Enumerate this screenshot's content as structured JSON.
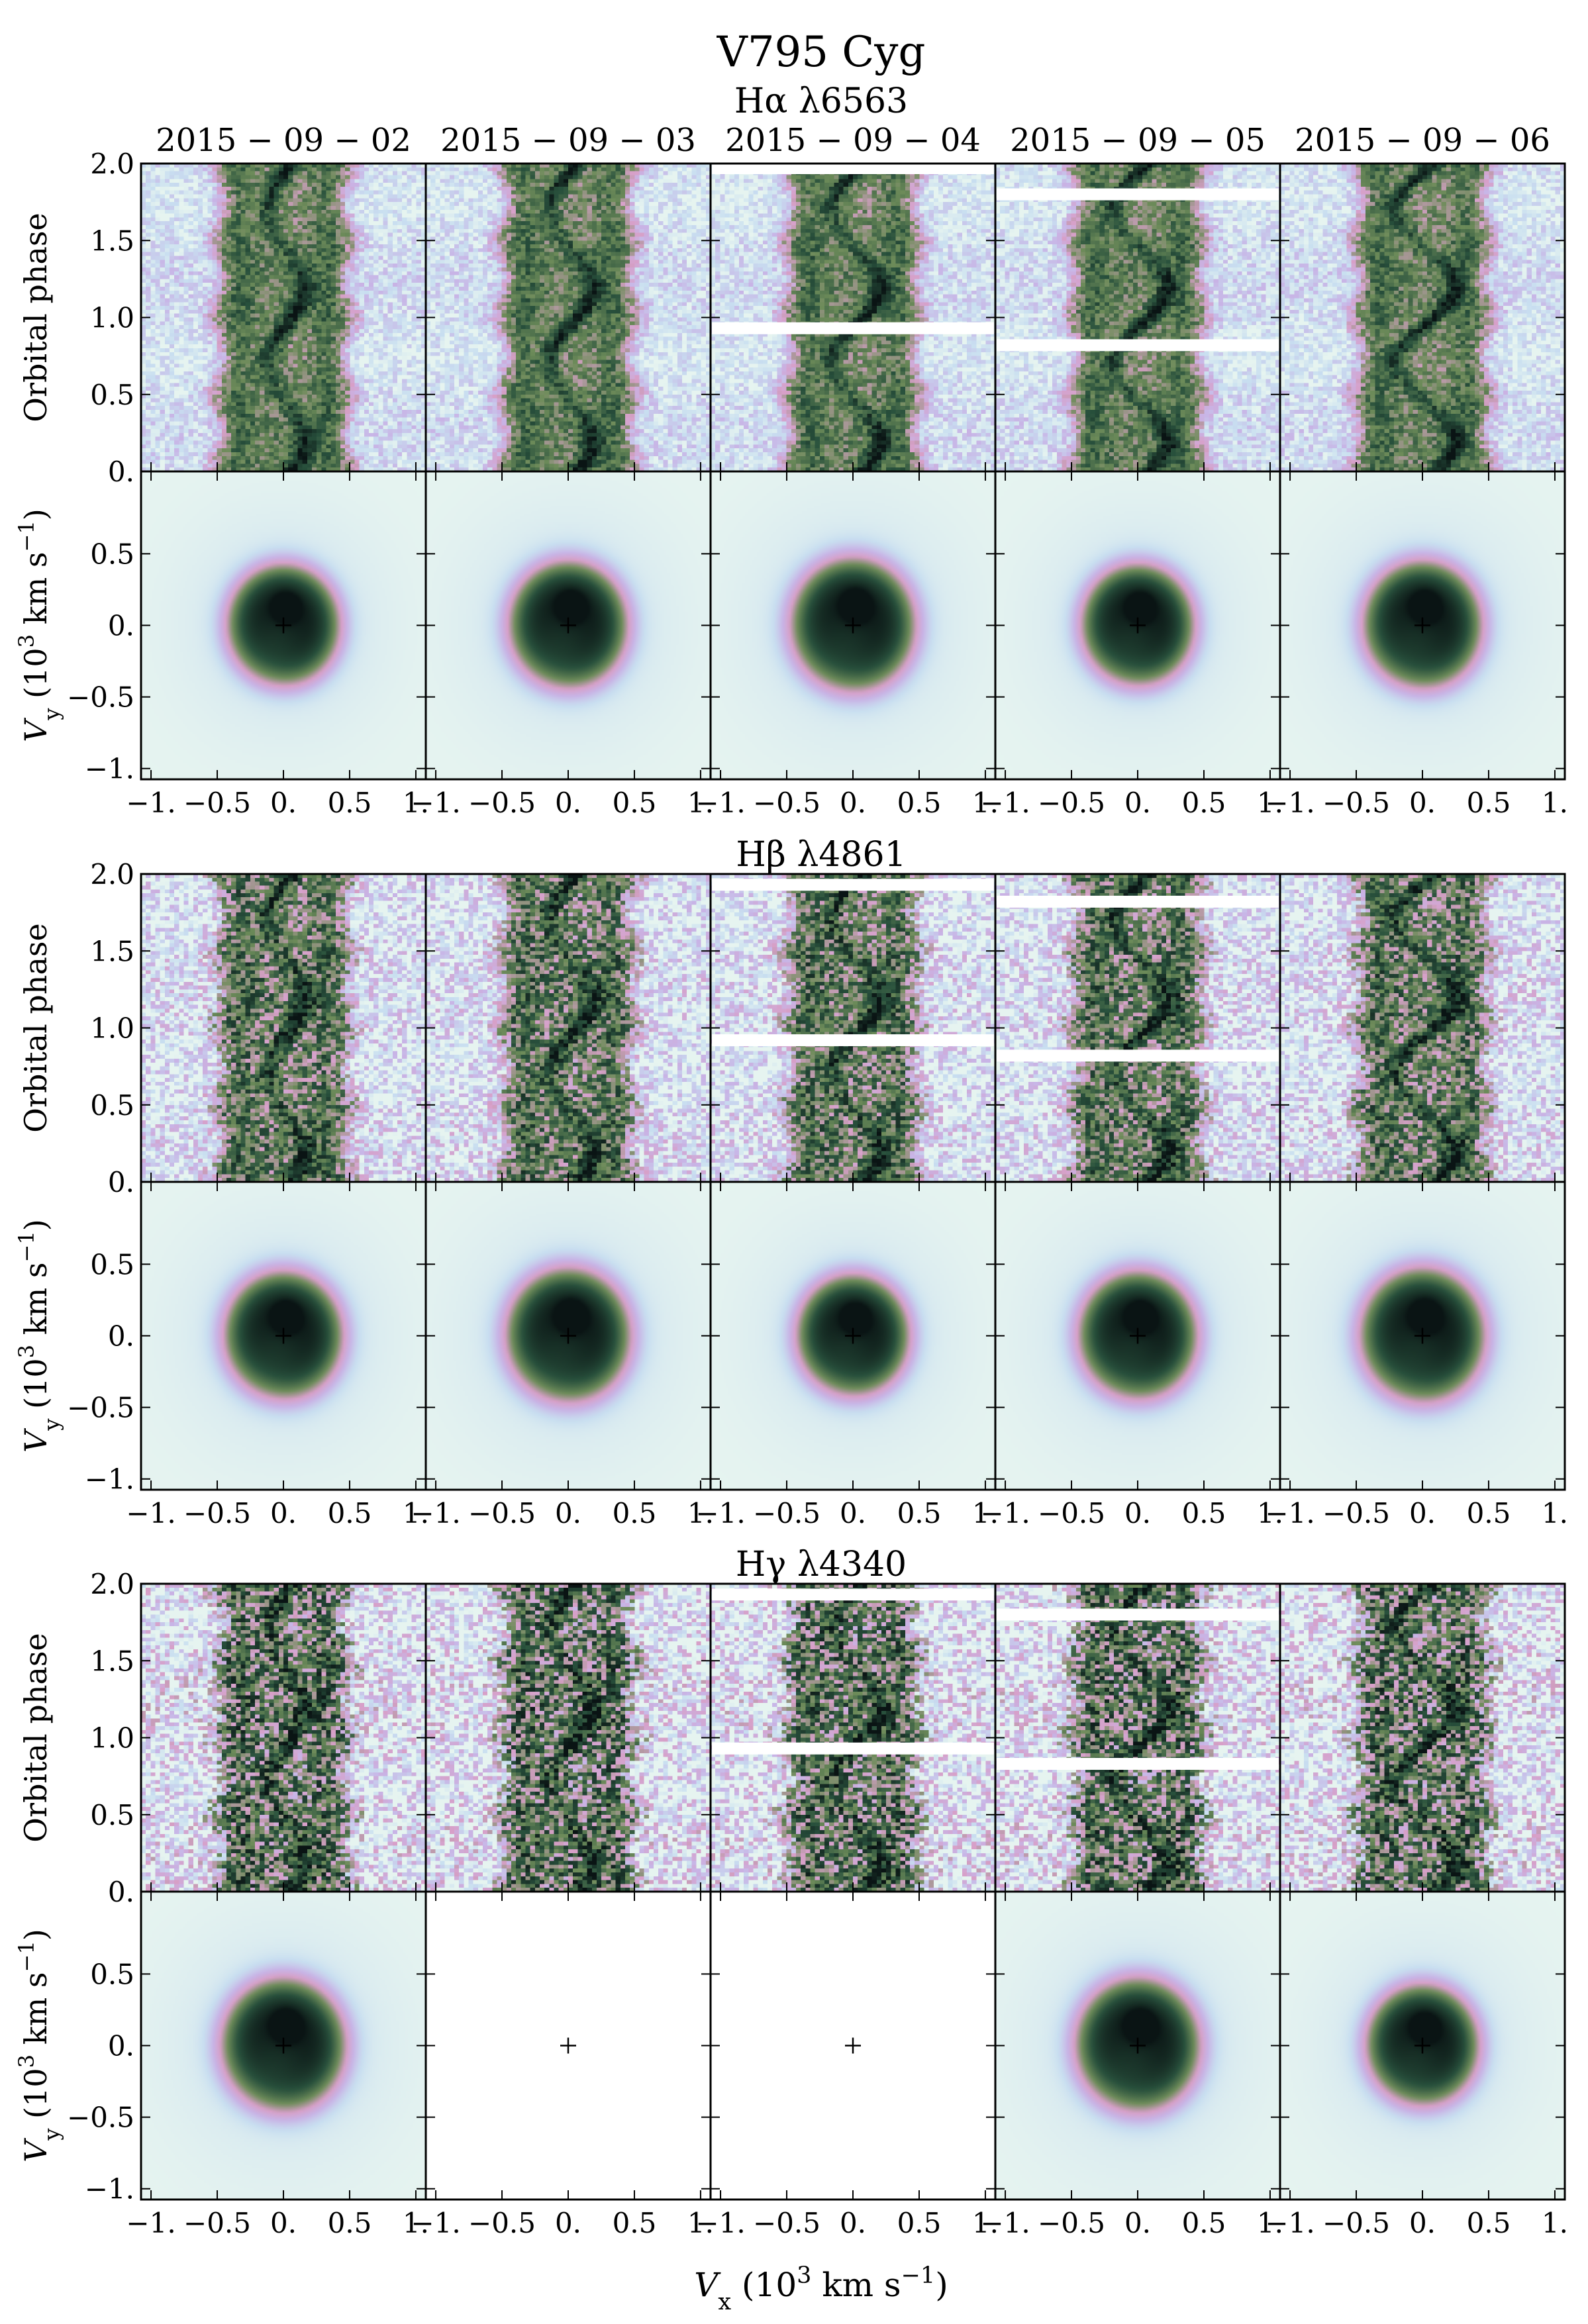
{
  "figure": {
    "title": "V795 Cyg",
    "x_axis_label": "V_x (10^3 km s^-1)",
    "y_axis_label_trail": "Orbital phase",
    "y_axis_label_map": "V_y (10^3 km s^-1)",
    "colormap_name": "cubehelix-like",
    "colors": {
      "background": "#e6f4f0",
      "pale_blue": "#c8def0",
      "lavender": "#c8b4e6",
      "pink": "#d7a0c8",
      "olive": "#6e8c5a",
      "dark_green": "#28503c",
      "black": "#0a1414",
      "gap": "#ffffff"
    }
  },
  "chart_data": [
    {
      "type": "heatmap",
      "line": "Hα λ6563",
      "dates": [
        "2015 − 09 − 02",
        "2015 − 09 − 03",
        "2015 − 09 − 04",
        "2015 − 09 − 05",
        "2015 − 09 − 06"
      ],
      "trail_ylim": [
        0,
        2.0
      ],
      "trail_yticks": [
        "0.",
        "0.5",
        "1.0",
        "1.5",
        "2.0"
      ],
      "map_xlim": [
        -1,
        1
      ],
      "map_ylim": [
        -1,
        1
      ],
      "map_ticks": [
        "−1.",
        "−0.5",
        "0.",
        "0.5",
        "1."
      ],
      "map_yticks": [
        "−1.",
        "−0.5",
        "0.",
        "0.5"
      ],
      "gaps_phase": [
        [],
        [],
        [
          1.97,
          0.93
        ],
        [
          1.8,
          0.82
        ],
        []
      ],
      "map_present": [
        true,
        true,
        true,
        true,
        true
      ],
      "noise": 0.25
    },
    {
      "type": "heatmap",
      "line": "Hβ λ4861",
      "dates": [
        "2015 − 09 − 02",
        "2015 − 09 − 03",
        "2015 − 09 − 04",
        "2015 − 09 − 05",
        "2015 − 09 − 06"
      ],
      "trail_ylim": [
        0,
        2.0
      ],
      "trail_yticks": [
        "0.",
        "0.5",
        "1.0",
        "1.5",
        "2.0"
      ],
      "map_xlim": [
        -1,
        1
      ],
      "map_ylim": [
        -1,
        1
      ],
      "map_ticks": [
        "−1.",
        "−0.5",
        "0.",
        "0.5",
        "1."
      ],
      "map_yticks": [
        "−1.",
        "−0.5",
        "0.",
        "0.5"
      ],
      "gaps_phase": [
        [],
        [],
        [
          1.93,
          0.92
        ],
        [
          1.82,
          0.82
        ],
        []
      ],
      "map_present": [
        true,
        true,
        true,
        true,
        true
      ],
      "noise": 0.45
    },
    {
      "type": "heatmap",
      "line": "Hγ λ4340",
      "dates": [
        "2015 − 09 − 02",
        "2015 − 09 − 03",
        "2015 − 09 − 04",
        "2015 − 09 − 05",
        "2015 − 09 − 06"
      ],
      "trail_ylim": [
        0,
        2.0
      ],
      "trail_yticks": [
        "0.",
        "0.5",
        "1.0",
        "1.5",
        "2.0"
      ],
      "map_xlim": [
        -1,
        1
      ],
      "map_ylim": [
        -1,
        1
      ],
      "map_ticks": [
        "−1.",
        "−0.5",
        "0.",
        "0.5",
        "1."
      ],
      "map_yticks": [
        "−1.",
        "−0.5",
        "0.",
        "0.5"
      ],
      "gaps_phase": [
        [],
        [],
        [
          1.93,
          0.93
        ],
        [
          1.8,
          0.83
        ],
        []
      ],
      "map_present": [
        true,
        false,
        false,
        true,
        true
      ],
      "noise": 0.6
    }
  ]
}
